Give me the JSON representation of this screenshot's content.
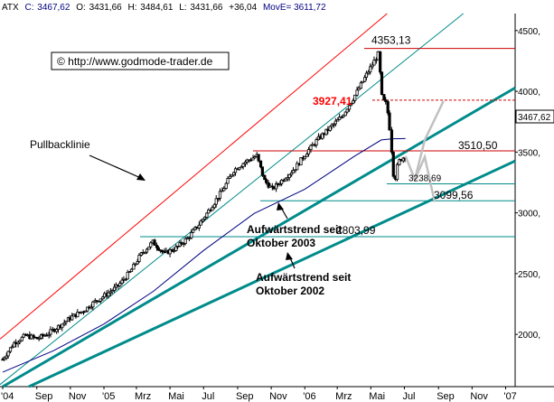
{
  "header": {
    "symbol": "ATX",
    "c_label": "C:",
    "c_value": "3467,62",
    "o_label": "O:",
    "o_value": "3431,66",
    "h_label": "H:",
    "h_value": "3484,61",
    "l_label": "L:",
    "l_value": "3431,66",
    "change": "+36,04",
    "ma_label": "MovE=",
    "ma_value": "3611,72"
  },
  "watermark": "© http://www.godmode-trader.de",
  "colors": {
    "candle": "#000000",
    "ma": "#000080",
    "channel_red": "#ff0000",
    "channel_teal": "#008b8b",
    "trend": "#008b8b",
    "support": "#008b8b",
    "resistance": "#d00000",
    "projection": "#c0c0c0",
    "header_blue": "#000080"
  },
  "annotations": {
    "pullback": "Pullbacklinie",
    "trend2003_l1": "Aufwärtstrend seit",
    "trend2003_l2": "Oktober 2003",
    "trend2002_l1": "Aufwärtstrend seit",
    "trend2002_l2": "Oktober 2002"
  },
  "chart_data": {
    "type": "candlestick",
    "x_axis": {
      "labels": [
        "'04",
        "Sep",
        "Nov",
        "'05",
        "Mrz",
        "Mai",
        "Jul",
        "Sep",
        "Nov",
        "'06",
        "Mrz",
        "Mai",
        "Jul",
        "Sep",
        "Nov",
        "'07"
      ],
      "start": "2004-07-01",
      "end": "2007-01-15"
    },
    "y_axis": {
      "ticks": [
        2000,
        2500,
        3000,
        3500,
        4000,
        4500
      ],
      "tick_labels": [
        "2000,",
        "2500,",
        "3000,",
        "3500,",
        "4000,",
        "4500,"
      ],
      "range": [
        1570,
        4640
      ]
    },
    "current_price_label": "3467,62",
    "levels": [
      {
        "value": 4353.13,
        "label": "4353,13",
        "style": "solid-red"
      },
      {
        "value": 3927.41,
        "label": "3927,41",
        "style": "dashed-red"
      },
      {
        "value": 3510.5,
        "label": "3510,50",
        "style": "solid-red"
      },
      {
        "value": 3238.69,
        "label": "3238,69",
        "style": "solid-teal"
      },
      {
        "value": 3099.56,
        "label": "3099,56",
        "style": "solid-teal"
      },
      {
        "value": 2803.99,
        "label": "2803,99",
        "style": "solid-teal"
      }
    ],
    "price_path": [
      [
        "2004-07-01",
        1795
      ],
      [
        "2004-07-22",
        1930
      ],
      [
        "2004-08-12",
        1990
      ],
      [
        "2004-09-02",
        1965
      ],
      [
        "2004-09-23",
        2010
      ],
      [
        "2004-10-14",
        2075
      ],
      [
        "2004-11-04",
        2145
      ],
      [
        "2004-11-25",
        2195
      ],
      [
        "2004-12-16",
        2270
      ],
      [
        "2005-01-06",
        2330
      ],
      [
        "2005-01-27",
        2400
      ],
      [
        "2005-02-17",
        2510
      ],
      [
        "2005-03-10",
        2660
      ],
      [
        "2005-03-31",
        2760
      ],
      [
        "2005-04-21",
        2665
      ],
      [
        "2005-05-12",
        2710
      ],
      [
        "2005-06-02",
        2790
      ],
      [
        "2005-06-23",
        2905
      ],
      [
        "2005-07-14",
        3040
      ],
      [
        "2005-08-04",
        3180
      ],
      [
        "2005-08-25",
        3350
      ],
      [
        "2005-09-15",
        3420
      ],
      [
        "2005-10-06",
        3470
      ],
      [
        "2005-10-20",
        3265
      ],
      [
        "2005-11-03",
        3195
      ],
      [
        "2005-11-24",
        3280
      ],
      [
        "2005-12-15",
        3370
      ],
      [
        "2006-01-05",
        3500
      ],
      [
        "2006-01-26",
        3610
      ],
      [
        "2006-02-16",
        3700
      ],
      [
        "2006-03-09",
        3790
      ],
      [
        "2006-03-30",
        3940
      ],
      [
        "2006-04-20",
        4110
      ],
      [
        "2006-05-04",
        4220
      ],
      [
        "2006-05-15",
        4310
      ],
      [
        "2006-05-22",
        3930
      ],
      [
        "2006-05-30",
        3895
      ],
      [
        "2006-06-05",
        3680
      ],
      [
        "2006-06-13",
        3238
      ],
      [
        "2006-06-20",
        3420
      ],
      [
        "2006-06-27",
        3450
      ],
      [
        "2006-07-03",
        3467
      ]
    ],
    "moving_average": [
      [
        "2004-07-01",
        1690
      ],
      [
        "2004-10-01",
        1865
      ],
      [
        "2005-01-01",
        2085
      ],
      [
        "2005-04-01",
        2355
      ],
      [
        "2005-07-01",
        2690
      ],
      [
        "2005-10-01",
        2995
      ],
      [
        "2006-01-01",
        3195
      ],
      [
        "2006-04-01",
        3465
      ],
      [
        "2006-05-20",
        3600
      ],
      [
        "2006-06-10",
        3610
      ],
      [
        "2006-07-03",
        3611
      ]
    ],
    "trend_lines": [
      {
        "name": "channel-upper",
        "p1": [
          "2004-07-01",
          1980
        ],
        "p2": [
          "2006-06-01",
          4645
        ],
        "color": "red"
      },
      {
        "name": "channel-mid",
        "p1": [
          "2004-07-01",
          1605
        ],
        "p2": [
          "2006-10-01",
          4585
        ],
        "color": "teal"
      },
      {
        "name": "trend-oct-2003",
        "p1": [
          "2004-07-01",
          1570
        ],
        "p2": [
          "2007-01-15",
          4020
        ],
        "color": "teal-bold"
      },
      {
        "name": "trend-oct-2002",
        "p1": [
          "2004-07-01",
          1470
        ],
        "p2": [
          "2007-01-15",
          3420
        ],
        "color": "teal-bold"
      }
    ],
    "projection": [
      [
        "2006-07-03",
        3467
      ],
      [
        "2006-07-20",
        3275
      ],
      [
        "2006-08-07",
        3460
      ],
      [
        "2006-08-25",
        3090
      ],
      [
        "2006-08-07",
        3600
      ],
      [
        "2006-09-10",
        3920
      ]
    ]
  }
}
